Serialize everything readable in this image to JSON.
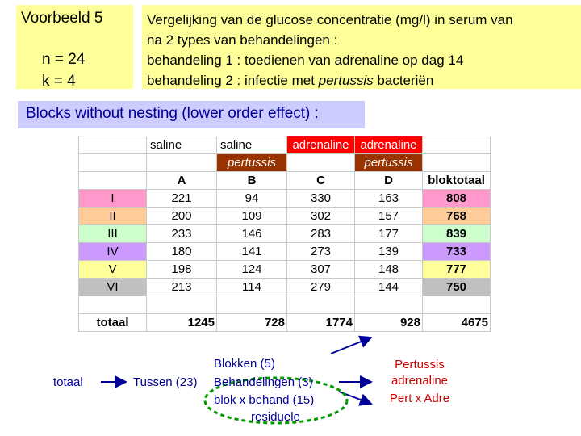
{
  "header": {
    "title": "Voorbeeld 5",
    "n": "n = 24",
    "k": "k = 4"
  },
  "description": {
    "line1": "Vergelijking van de glucose concentratie (mg/l) in serum van",
    "line2": "na 2 types van behandelingen :",
    "line3": "behandeling 1 : toedienen van adrenaline op dag 14",
    "line4_pre": "behandeling 2 : infectie met ",
    "line4_italic": "pertussis",
    "line4_post": " bacteriën"
  },
  "subtitle": "Blocks without nesting (lower order effect) :",
  "table": {
    "header1": [
      "saline",
      "saline",
      "adrenaline",
      "adrenaline"
    ],
    "header2": [
      "pertussis",
      "pertussis"
    ],
    "columns": [
      "A",
      "B",
      "C",
      "D",
      "bloktotaal"
    ],
    "rows": [
      {
        "label": "I",
        "color": "#ff99cc",
        "values": [
          "221",
          "94",
          "330",
          "163",
          "808"
        ]
      },
      {
        "label": "II",
        "color": "#ffcc99",
        "values": [
          "200",
          "109",
          "302",
          "157",
          "768"
        ]
      },
      {
        "label": "III",
        "color": "#ccffcc",
        "values": [
          "233",
          "146",
          "283",
          "177",
          "839"
        ]
      },
      {
        "label": "IV",
        "color": "#cc99ff",
        "values": [
          "180",
          "141",
          "273",
          "139",
          "733"
        ]
      },
      {
        "label": "V",
        "color": "#ffff99",
        "values": [
          "198",
          "124",
          "307",
          "148",
          "777"
        ]
      },
      {
        "label": "VI",
        "color": "#c0c0c0",
        "values": [
          "213",
          "114",
          "279",
          "144",
          "750"
        ]
      }
    ],
    "total_label": "totaal",
    "totals": [
      "1245",
      "728",
      "1774",
      "928",
      "4675"
    ]
  },
  "anova": {
    "totaal": "totaal",
    "tussen": "Tussen (23)",
    "blokken": "Blokken (5)",
    "behandelingen": "Behandelingen (3)",
    "interactie": "blok x behand (15)",
    "residuele": "residuele",
    "pertussis": "Pertussis",
    "adrenaline": "adrenaline",
    "pert_x_adre": "Pert x Adre"
  },
  "colors": {
    "title_bg": "#ffff99",
    "subtitle_bg": "#ccccff",
    "subtitle_text": "#000099",
    "adrenaline_header": "#ff0000",
    "pertussis_header": "#993300",
    "arrow": "#000099",
    "ellipse": "#009900",
    "red_text": "#cc0000"
  }
}
